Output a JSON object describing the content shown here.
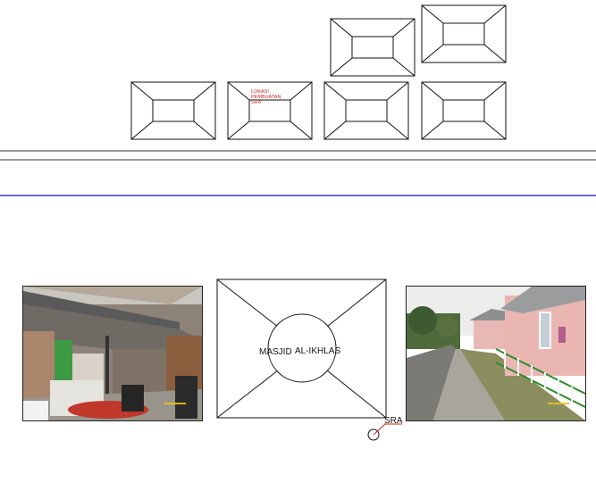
{
  "site_label": {
    "line1": "LOKASI",
    "line2": "PEMBUATAN",
    "line3": "SRA"
  },
  "mosque": {
    "name_left": "MASJID",
    "name_right": "AL-IKHLAS"
  },
  "marker": {
    "label": "SRA"
  },
  "colors": {
    "line": "#111111",
    "site_label": "#cc2222",
    "marker_accent": "#cc2222",
    "road_divider": "#3b3bc8"
  },
  "photos": {
    "left": {
      "alt": "photo-left"
    },
    "right": {
      "alt": "photo-right"
    }
  }
}
